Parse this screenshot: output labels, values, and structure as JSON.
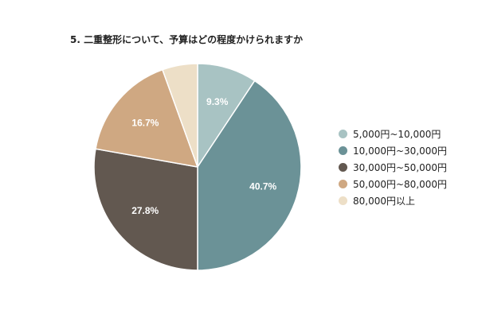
{
  "chart_data": {
    "type": "pie",
    "title": "5. 二重整形について、予算はどの程度かけられますか",
    "categories": [
      "5,000円~10,000円",
      "10,000円~30,000円",
      "30,000円~50,000円",
      "50,000円~80,000円",
      "80,000円以上"
    ],
    "values": [
      9.3,
      40.7,
      27.8,
      16.7,
      5.5
    ],
    "data_labels": [
      "9.3%",
      "40.7%",
      "27.8%",
      "16.7%",
      ""
    ],
    "colors": [
      "#a8c3c3",
      "#6b9297",
      "#625850",
      "#cfa882",
      "#eddfc7"
    ],
    "legend_position": "right"
  }
}
